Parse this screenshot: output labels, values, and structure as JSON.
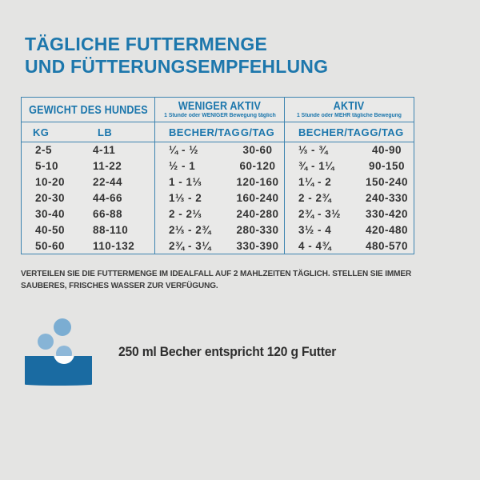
{
  "title": {
    "line1": "TÄGLICHE FUTTERMENGE",
    "line2": "UND FÜTTERUNGSEMPFEHLUNG"
  },
  "table": {
    "weight_header": "GEWICHT DES HUNDES",
    "sections": [
      {
        "label": "WENIGER AKTIV",
        "subtitle": "1 Stunde oder WENIGER Bewegung täglich"
      },
      {
        "label": "AKTIV",
        "subtitle": "1 Stunde oder MEHR tägliche Bewegung"
      }
    ],
    "columns": [
      "KG",
      "LB",
      "BECHER/TAG",
      "G/TAG",
      "BECHER/TAG",
      "G/TAG"
    ],
    "rows": [
      [
        "2-5",
        "4-11",
        "¼ - ½",
        "30-60",
        "⅓ - ¾",
        "40-90"
      ],
      [
        "5-10",
        "11-22",
        "½ - 1",
        "60-120",
        "¾ - 1¼",
        "90-150"
      ],
      [
        "10-20",
        "22-44",
        "1 - 1⅓",
        "120-160",
        "1¼ - 2",
        "150-240"
      ],
      [
        "20-30",
        "44-66",
        "1⅓ - 2",
        "160-240",
        "2 - 2¾",
        "240-330"
      ],
      [
        "30-40",
        "66-88",
        "2 - 2⅓",
        "240-280",
        "2¾ - 3½",
        "330-420"
      ],
      [
        "40-50",
        "88-110",
        "2⅓ - 2¾",
        "280-330",
        "3½ - 4",
        "420-480"
      ],
      [
        "50-60",
        "110-132",
        "2¾ - 3¼",
        "330-390",
        "4 - 4¾",
        "480-570"
      ]
    ]
  },
  "note": "VERTEILEN SIE DIE FUTTERMENGE IM IDEALFALL AUF 2 MAHLZEITEN TÄGLICH. STELLEN SIE IMMER\nSAUBERES, FRISCHES WASSER ZUR VERFÜGUNG.",
  "cup_note": "250 ml Becher entspricht 120 g Futter",
  "icons": {
    "bowl": "bowl-with-kibble-icon"
  },
  "colors": {
    "accent_blue": "#1b76ac",
    "border_blue": "#3e84b0",
    "bowl_blue": "#1a6ba2",
    "kibble_blue": "#87b4d6",
    "text_dark": "#333333",
    "background": "#e4e4e3",
    "table_background": "#e9e9e8"
  }
}
